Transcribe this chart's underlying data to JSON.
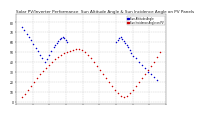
{
  "title": "Solar PV/Inverter Performance  Sun Altitude Angle & Sun Incidence Angle on PV Panels",
  "title_fontsize": 3.0,
  "y_ticks": [
    0,
    10,
    20,
    30,
    40,
    50,
    60,
    70,
    80
  ],
  "ylim": [
    -2,
    88
  ],
  "xlim": [
    0,
    1
  ],
  "background_color": "#ffffff",
  "grid_color": "#bbbbbb",
  "legend_labels": [
    "Sun Altitude Angle",
    "Sun Incidence Angle on PV"
  ],
  "altitude_color": "#0000cc",
  "incidence_color": "#cc0000",
  "dot_size": 1.2,
  "altitude_x": [
    0.04,
    0.055,
    0.07,
    0.085,
    0.1,
    0.115,
    0.13,
    0.145,
    0.16,
    0.175,
    0.19,
    0.205,
    0.22,
    0.235,
    0.25,
    0.26,
    0.27,
    0.28,
    0.29,
    0.3,
    0.31,
    0.32,
    0.33,
    0.34,
    0.67,
    0.68,
    0.69,
    0.7,
    0.71,
    0.72,
    0.73,
    0.74,
    0.75,
    0.76,
    0.77,
    0.78,
    0.8,
    0.82,
    0.84,
    0.86,
    0.88,
    0.9,
    0.92,
    0.94
  ],
  "altitude_y": [
    75,
    72,
    68,
    65,
    62,
    58,
    54,
    51,
    47,
    44,
    40,
    43,
    47,
    51,
    55,
    57,
    59,
    61,
    63,
    64,
    65,
    64,
    62,
    60,
    60,
    62,
    64,
    65,
    63,
    61,
    59,
    57,
    55,
    52,
    49,
    46,
    44,
    40,
    37,
    34,
    30,
    28,
    25,
    22
  ],
  "incidence_x": [
    0.04,
    0.06,
    0.08,
    0.1,
    0.12,
    0.14,
    0.16,
    0.18,
    0.2,
    0.22,
    0.24,
    0.26,
    0.28,
    0.3,
    0.32,
    0.34,
    0.36,
    0.38,
    0.4,
    0.42,
    0.44,
    0.46,
    0.48,
    0.5,
    0.52,
    0.54,
    0.56,
    0.58,
    0.6,
    0.62,
    0.64,
    0.66,
    0.68,
    0.7,
    0.72,
    0.74,
    0.76,
    0.78,
    0.8,
    0.82,
    0.84,
    0.86,
    0.88,
    0.9,
    0.92,
    0.94,
    0.96
  ],
  "incidence_y": [
    5,
    8,
    12,
    16,
    20,
    24,
    28,
    31,
    34,
    37,
    40,
    43,
    45,
    47,
    49,
    50,
    51,
    52,
    53,
    53,
    52,
    50,
    47,
    44,
    40,
    36,
    32,
    28,
    24,
    20,
    16,
    12,
    9,
    6,
    5,
    6,
    9,
    12,
    16,
    20,
    24,
    28,
    32,
    36,
    40,
    45,
    50
  ]
}
